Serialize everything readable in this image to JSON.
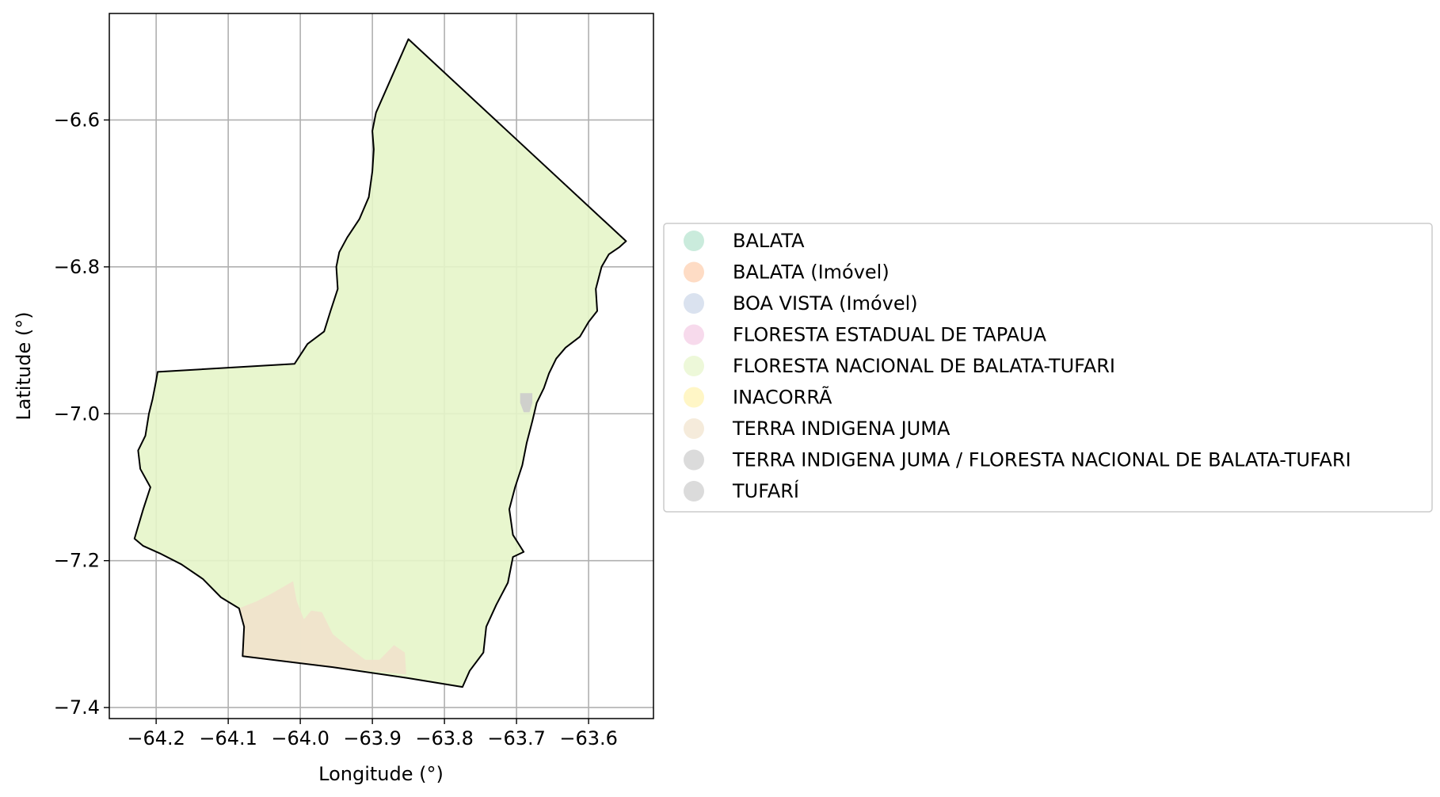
{
  "map": {
    "xlabel": "Longitude (°)",
    "ylabel": "Latitude (°)",
    "xlim": [
      -64.265,
      -63.51
    ],
    "ylim": [
      -7.415,
      -6.455
    ],
    "x_ticks": [
      {
        "value": -64.2,
        "label": "−64.2"
      },
      {
        "value": -64.1,
        "label": "−64.1"
      },
      {
        "value": -64.0,
        "label": "−64.0"
      },
      {
        "value": -63.9,
        "label": "−63.9"
      },
      {
        "value": -63.8,
        "label": "−63.8"
      },
      {
        "value": -63.7,
        "label": "−63.7"
      },
      {
        "value": -63.6,
        "label": "−63.6"
      }
    ],
    "y_ticks": [
      {
        "value": -6.6,
        "label": "−6.6"
      },
      {
        "value": -6.8,
        "label": "−6.8"
      },
      {
        "value": -7.0,
        "label": "−7.0"
      },
      {
        "value": -7.2,
        "label": "−7.2"
      },
      {
        "value": -7.4,
        "label": "−7.4"
      }
    ],
    "grid": true,
    "outline_color": "#000000",
    "legend_placement": "center-left outside right",
    "legend": [
      {
        "label": "BALATA",
        "color": "#b3e2cd"
      },
      {
        "label": "BALATA (Imóvel)",
        "color": "#fdcdac"
      },
      {
        "label": "BOA VISTA (Imóvel)",
        "color": "#cbd5e8"
      },
      {
        "label": "FLORESTA ESTADUAL DE TAPAUA",
        "color": "#f4cae4"
      },
      {
        "label": "FLORESTA NACIONAL DE BALATA-TUFARI",
        "color": "#e6f5c9"
      },
      {
        "label": "INACORRÃ",
        "color": "#fff2ae"
      },
      {
        "label": "TERRA INDIGENA JUMA",
        "color": "#f1e2cc"
      },
      {
        "label": "TERRA INDIGENA JUMA / FLORESTA NACIONAL DE BALATA-TUFARI",
        "color": "#cccccc"
      },
      {
        "label": "TUFARÍ",
        "color": "#cccccc"
      }
    ],
    "regions": [
      {
        "name": "FLORESTA NACIONAL DE BALATA-TUFARI",
        "color": "#e6f5c9",
        "coords": [
          [
            -63.85,
            -6.49
          ],
          [
            -63.548,
            -6.765
          ],
          [
            -63.557,
            -6.773
          ],
          [
            -63.572,
            -6.783
          ],
          [
            -63.582,
            -6.8
          ],
          [
            -63.59,
            -6.83
          ],
          [
            -63.588,
            -6.86
          ],
          [
            -63.6,
            -6.875
          ],
          [
            -63.612,
            -6.895
          ],
          [
            -63.632,
            -6.91
          ],
          [
            -63.645,
            -6.925
          ],
          [
            -63.655,
            -6.945
          ],
          [
            -63.662,
            -6.965
          ],
          [
            -63.672,
            -6.985
          ],
          [
            -63.678,
            -7.01
          ],
          [
            -63.686,
            -7.04
          ],
          [
            -63.692,
            -7.07
          ],
          [
            -63.702,
            -7.1
          ],
          [
            -63.71,
            -7.13
          ],
          [
            -63.705,
            -7.165
          ],
          [
            -63.69,
            -7.188
          ],
          [
            -63.705,
            -7.195
          ],
          [
            -63.712,
            -7.23
          ],
          [
            -63.728,
            -7.26
          ],
          [
            -63.742,
            -7.29
          ],
          [
            -63.746,
            -7.325
          ],
          [
            -63.765,
            -7.35
          ],
          [
            -63.775,
            -7.372
          ],
          [
            -63.85,
            -7.36
          ],
          [
            -63.955,
            -7.345
          ],
          [
            -64.08,
            -7.33
          ],
          [
            -64.078,
            -7.29
          ],
          [
            -64.085,
            -7.265
          ],
          [
            -64.11,
            -7.25
          ],
          [
            -64.135,
            -7.225
          ],
          [
            -64.165,
            -7.205
          ],
          [
            -64.195,
            -7.19
          ],
          [
            -64.218,
            -7.18
          ],
          [
            -64.23,
            -7.17
          ],
          [
            -64.218,
            -7.13
          ],
          [
            -64.208,
            -7.1
          ],
          [
            -64.222,
            -7.075
          ],
          [
            -64.225,
            -7.05
          ],
          [
            -64.215,
            -7.03
          ],
          [
            -64.21,
            -7.0
          ],
          [
            -64.205,
            -6.98
          ],
          [
            -64.2,
            -6.955
          ],
          [
            -64.198,
            -6.943
          ],
          [
            -64.008,
            -6.932
          ],
          [
            -63.99,
            -6.905
          ],
          [
            -63.967,
            -6.888
          ],
          [
            -63.958,
            -6.86
          ],
          [
            -63.948,
            -6.83
          ],
          [
            -63.95,
            -6.8
          ],
          [
            -63.946,
            -6.78
          ],
          [
            -63.935,
            -6.76
          ],
          [
            -63.918,
            -6.735
          ],
          [
            -63.905,
            -6.705
          ],
          [
            -63.9,
            -6.67
          ],
          [
            -63.898,
            -6.64
          ],
          [
            -63.9,
            -6.615
          ],
          [
            -63.895,
            -6.59
          ]
        ]
      },
      {
        "name": "TERRA INDIGENA JUMA",
        "color": "#f1e2cc",
        "coords": [
          [
            -64.08,
            -7.33
          ],
          [
            -64.078,
            -7.29
          ],
          [
            -64.085,
            -7.265
          ],
          [
            -64.06,
            -7.255
          ],
          [
            -64.04,
            -7.245
          ],
          [
            -64.01,
            -7.228
          ],
          [
            -64.005,
            -7.255
          ],
          [
            -63.995,
            -7.28
          ],
          [
            -63.985,
            -7.268
          ],
          [
            -63.97,
            -7.27
          ],
          [
            -63.955,
            -7.3
          ],
          [
            -63.93,
            -7.32
          ],
          [
            -63.91,
            -7.335
          ],
          [
            -63.89,
            -7.335
          ],
          [
            -63.87,
            -7.315
          ],
          [
            -63.855,
            -7.325
          ],
          [
            -63.853,
            -7.355
          ],
          [
            -63.955,
            -7.345
          ]
        ]
      },
      {
        "name": "TERRA INDIGENA JUMA / FLORESTA NACIONAL DE BALATA-TUFARI",
        "color": "#cccccc",
        "coords": [
          [
            -63.695,
            -6.972
          ],
          [
            -63.678,
            -6.972
          ],
          [
            -63.678,
            -6.985
          ],
          [
            -63.682,
            -6.998
          ],
          [
            -63.69,
            -6.998
          ],
          [
            -63.695,
            -6.985
          ]
        ]
      }
    ]
  }
}
